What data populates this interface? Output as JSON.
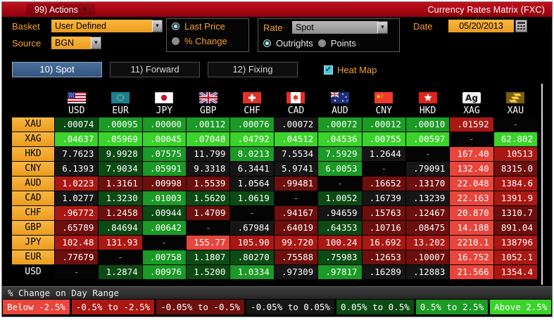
{
  "titlebar": {
    "actions_label": "99) Actions",
    "title": "Currency Rates Matrix (FXC)"
  },
  "controls": {
    "basket_label": "Basket",
    "basket_value": "User Defined",
    "source_label": "Source",
    "source_value": "BGN",
    "price_mode": {
      "options": [
        "Last Price",
        "% Change"
      ],
      "selected": "Last Price"
    },
    "rate_label": "Rate",
    "rate_value": "Spot",
    "rate_mode": {
      "options": [
        "Outrights",
        "Points"
      ],
      "selected": "Outrights"
    },
    "date_label": "Date",
    "date_value": "05/20/2013"
  },
  "tabs": [
    {
      "label": "10) Spot",
      "active": true
    },
    {
      "label": "11) Forward",
      "active": false
    },
    {
      "label": "12) Fixing",
      "active": false
    }
  ],
  "heatmap": {
    "label": "Heat Map",
    "checked": true
  },
  "matrix": {
    "columns": [
      {
        "code": "USD",
        "flag": "us-flag-icon"
      },
      {
        "code": "EUR",
        "flag": "eu-flag-icon"
      },
      {
        "code": "JPY",
        "flag": "japan-flag-icon"
      },
      {
        "code": "GBP",
        "flag": "uk-flag-icon"
      },
      {
        "code": "CHF",
        "flag": "switzerland-flag-icon"
      },
      {
        "code": "CAD",
        "flag": "canada-flag-icon"
      },
      {
        "code": "AUD",
        "flag": "australia-flag-icon"
      },
      {
        "code": "CNY",
        "flag": "china-flag-icon"
      },
      {
        "code": "HKD",
        "flag": "hongkong-flag-icon"
      },
      {
        "code": "XAG",
        "flag": "silver-ag-icon"
      },
      {
        "code": "XAU",
        "flag": "gold-bars-icon"
      }
    ],
    "rows": [
      {
        "label": "XAU",
        "values": [
          ".00074",
          ".00095",
          ".00000",
          ".00112",
          ".00076",
          ".00072",
          ".00072",
          ".00012",
          ".00010",
          ".01592",
          "-"
        ],
        "buckets": [
          5,
          6,
          6,
          6,
          6,
          4,
          6,
          6,
          6,
          2,
          0
        ]
      },
      {
        "label": "XAG",
        "values": [
          ".04637",
          ".05969",
          ".00045",
          ".07048",
          ".04792",
          ".04512",
          ".04536",
          ".00755",
          ".00597",
          "-",
          "62.802"
        ],
        "buckets": [
          7,
          7,
          7,
          7,
          7,
          7,
          7,
          7,
          7,
          0,
          7
        ]
      },
      {
        "label": "HKD",
        "values": [
          "7.7623",
          "9.9928",
          ".07575",
          "11.799",
          "8.0213",
          "7.5534",
          "7.5929",
          "1.2644",
          "-",
          "167.40",
          "10513"
        ],
        "buckets": [
          4,
          5,
          6,
          4,
          6,
          4,
          6,
          4,
          0,
          1,
          2
        ]
      },
      {
        "label": "CNY",
        "values": [
          "6.1393",
          "7.9034",
          ".05991",
          "9.3318",
          "6.3441",
          "5.9741",
          "6.0053",
          "-",
          ".79091",
          "132.40",
          "8315.0"
        ],
        "buckets": [
          4,
          5,
          6,
          4,
          4,
          4,
          6,
          0,
          4,
          1,
          3
        ]
      },
      {
        "label": "AUD",
        "values": [
          "1.0223",
          "1.3161",
          ".00998",
          "1.5539",
          "1.0564",
          ".99481",
          "-",
          ".16652",
          ".13170",
          "22.048",
          "1384.6"
        ],
        "buckets": [
          2,
          3,
          3,
          3,
          4,
          3,
          0,
          3,
          3,
          1,
          2
        ]
      },
      {
        "label": "CAD",
        "values": [
          "1.0277",
          "1.3230",
          ".01003",
          "1.5620",
          "1.0619",
          "-",
          "1.0052",
          ".16739",
          ".13239",
          "22.163",
          "1391.9"
        ],
        "buckets": [
          4,
          5,
          6,
          5,
          5,
          0,
          5,
          4,
          4,
          1,
          2
        ]
      },
      {
        "label": "CHF",
        "values": [
          ".96772",
          "1.2458",
          ".00944",
          "1.4709",
          "-",
          ".94167",
          ".94659",
          ".15763",
          ".12467",
          "20.870",
          "1310.7"
        ],
        "buckets": [
          2,
          3,
          5,
          3,
          0,
          3,
          4,
          3,
          3,
          1,
          3
        ]
      },
      {
        "label": "GBP",
        "values": [
          ".65789",
          ".84694",
          ".00642",
          "-",
          ".67984",
          ".64019",
          ".64353",
          ".10716",
          ".08475",
          "14.188",
          "891.04"
        ],
        "buckets": [
          3,
          5,
          6,
          0,
          4,
          3,
          5,
          3,
          3,
          1,
          3
        ]
      },
      {
        "label": "JPY",
        "values": [
          "102.48",
          "131.93",
          "-",
          "155.77",
          "105.90",
          "99.720",
          "100.24",
          "16.692",
          "13.202",
          "2210.1",
          "138796"
        ],
        "buckets": [
          2,
          2,
          0,
          1,
          2,
          2,
          2,
          2,
          2,
          1,
          2
        ]
      },
      {
        "label": "EUR",
        "values": [
          ".77679",
          "-",
          ".00758",
          "1.1807",
          ".80270",
          ".75588",
          ".75983",
          ".12653",
          ".10007",
          "16.752",
          "1052.1"
        ],
        "buckets": [
          3,
          0,
          6,
          5,
          5,
          3,
          5,
          3,
          3,
          1,
          2
        ]
      },
      {
        "label": "USD",
        "plain": true,
        "values": [
          "-",
          "1.2874",
          ".00976",
          "1.5200",
          "1.0334",
          ".97309",
          ".97817",
          ".16289",
          ".12883",
          "21.566",
          "1354.4"
        ],
        "buckets": [
          0,
          5,
          6,
          5,
          6,
          4,
          6,
          4,
          4,
          1,
          2
        ]
      }
    ]
  },
  "legend": {
    "title": "% Change on Day Range",
    "buckets": [
      {
        "label": "Below -2.5%",
        "color": "#e8453c"
      },
      {
        "label": "-0.5% to -2.5%",
        "color": "#aa1813"
      },
      {
        "label": "-0.05% to -0.5%",
        "color": "#6d0f0c"
      },
      {
        "label": "-0.05% to 0.05%",
        "color": "#161616"
      },
      {
        "label": "0.05% to 0.5%",
        "color": "#0c4a13"
      },
      {
        "label": "0.5% to 2.5%",
        "color": "#1b9a25"
      },
      {
        "label": "Above 2.5%",
        "color": "#3bd32c"
      }
    ]
  },
  "colors": {
    "amber": "#f2a02c",
    "titlebar_red": "#a80011",
    "tab_active_blue": "#3a5f8a",
    "heatmap_cyan": "#50c6d8",
    "flat_cell": "#040404",
    "dash_text": "#9a9a9a"
  }
}
